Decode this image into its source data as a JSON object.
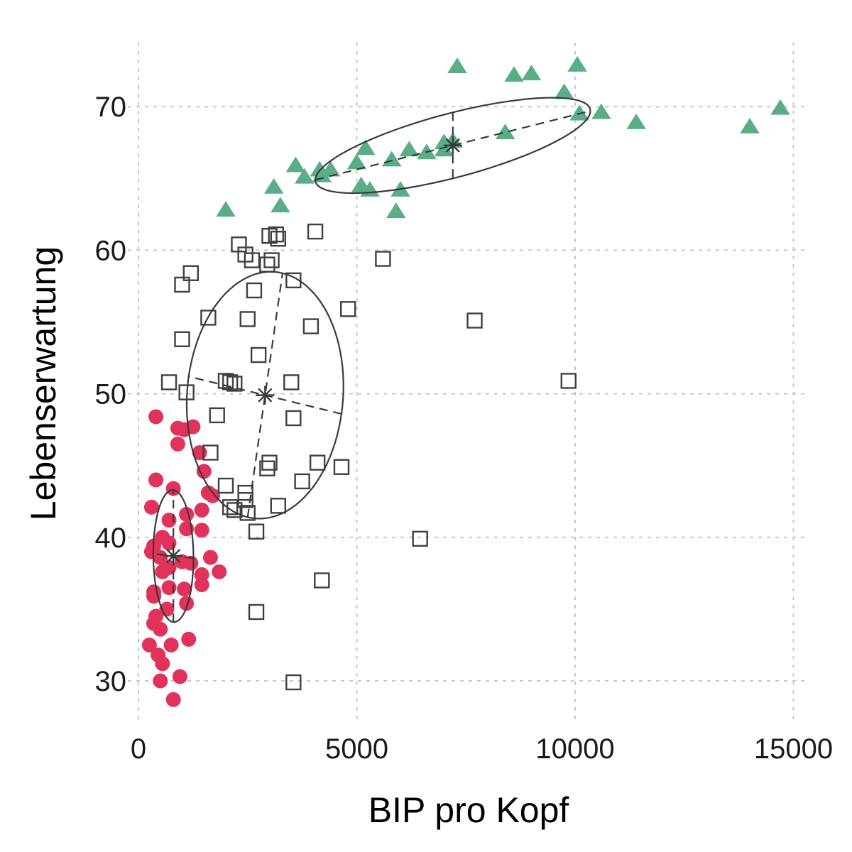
{
  "chart_data": {
    "type": "scatter",
    "title": "",
    "xlabel": "BIP pro Kopf",
    "ylabel": "Lebenserwartung",
    "xlim": [
      0,
      15000
    ],
    "ylim": [
      27,
      75
    ],
    "xticks": [
      0,
      5000,
      10000,
      15000
    ],
    "yticks": [
      30,
      40,
      50,
      60,
      70
    ],
    "grid": true,
    "legend": "none",
    "series": [
      {
        "marker": "circle",
        "color": "#E0325A",
        "points": [
          [
            400,
            48.4
          ],
          [
            900,
            47.6
          ],
          [
            1050,
            47.5
          ],
          [
            1250,
            47.7
          ],
          [
            900,
            46.5
          ],
          [
            1400,
            45.9
          ],
          [
            1500,
            44.6
          ],
          [
            400,
            44.0
          ],
          [
            800,
            43.4
          ],
          [
            1600,
            43.1
          ],
          [
            1700,
            42.9
          ],
          [
            300,
            42.1
          ],
          [
            1450,
            41.9
          ],
          [
            1100,
            41.6
          ],
          [
            700,
            41.2
          ],
          [
            1100,
            40.6
          ],
          [
            1450,
            40.5
          ],
          [
            550,
            40.0
          ],
          [
            700,
            39.6
          ],
          [
            350,
            39.4
          ],
          [
            500,
            38.6
          ],
          [
            300,
            39.0
          ],
          [
            1000,
            38.3
          ],
          [
            1200,
            38.2
          ],
          [
            1650,
            38.6
          ],
          [
            700,
            37.9
          ],
          [
            550,
            37.6
          ],
          [
            1450,
            37.4
          ],
          [
            1850,
            37.6
          ],
          [
            1450,
            36.7
          ],
          [
            1050,
            36.4
          ],
          [
            700,
            36.5
          ],
          [
            350,
            36.2
          ],
          [
            350,
            35.9
          ],
          [
            1100,
            35.4
          ],
          [
            650,
            35.0
          ],
          [
            400,
            34.5
          ],
          [
            350,
            34.0
          ],
          [
            500,
            33.6
          ],
          [
            1150,
            32.9
          ],
          [
            750,
            32.5
          ],
          [
            250,
            32.5
          ],
          [
            450,
            31.8
          ],
          [
            550,
            31.2
          ],
          [
            950,
            30.3
          ],
          [
            500,
            30.0
          ],
          [
            800,
            28.7
          ]
        ]
      },
      {
        "marker": "square",
        "color": "#404040",
        "points": [
          [
            3150,
            61.1
          ],
          [
            4050,
            61.3
          ],
          [
            3000,
            61.0
          ],
          [
            3200,
            60.8
          ],
          [
            2300,
            60.4
          ],
          [
            2450,
            59.7
          ],
          [
            2600,
            59.3
          ],
          [
            3050,
            59.3
          ],
          [
            2950,
            59.0
          ],
          [
            5600,
            59.4
          ],
          [
            1200,
            58.4
          ],
          [
            1000,
            57.6
          ],
          [
            3550,
            57.9
          ],
          [
            2650,
            57.2
          ],
          [
            4800,
            55.9
          ],
          [
            1600,
            55.3
          ],
          [
            2500,
            55.2
          ],
          [
            7700,
            55.1
          ],
          [
            3950,
            54.7
          ],
          [
            1000,
            53.8
          ],
          [
            2750,
            52.7
          ],
          [
            2000,
            50.9
          ],
          [
            2100,
            50.8
          ],
          [
            2200,
            50.7
          ],
          [
            700,
            50.8
          ],
          [
            3500,
            50.8
          ],
          [
            9850,
            50.9
          ],
          [
            1100,
            50.1
          ],
          [
            1800,
            48.5
          ],
          [
            3550,
            48.3
          ],
          [
            1650,
            45.9
          ],
          [
            3000,
            45.2
          ],
          [
            4100,
            45.2
          ],
          [
            4650,
            44.9
          ],
          [
            2950,
            44.8
          ],
          [
            3750,
            43.9
          ],
          [
            2000,
            43.6
          ],
          [
            2450,
            43.1
          ],
          [
            2450,
            42.6
          ],
          [
            3200,
            42.2
          ],
          [
            2100,
            42.1
          ],
          [
            2200,
            41.9
          ],
          [
            2500,
            41.7
          ],
          [
            2700,
            40.4
          ],
          [
            6450,
            39.9
          ],
          [
            4200,
            37.0
          ],
          [
            2700,
            34.8
          ],
          [
            3550,
            29.9
          ]
        ]
      },
      {
        "marker": "triangle",
        "color": "#5AAD87",
        "points": [
          [
            7300,
            72.8
          ],
          [
            10050,
            72.9
          ],
          [
            8600,
            72.2
          ],
          [
            9000,
            72.3
          ],
          [
            9750,
            71.0
          ],
          [
            14700,
            69.9
          ],
          [
            10600,
            69.6
          ],
          [
            10100,
            69.5
          ],
          [
            11400,
            68.9
          ],
          [
            14000,
            68.6
          ],
          [
            8400,
            68.2
          ],
          [
            7000,
            67.5
          ],
          [
            7200,
            67.6
          ],
          [
            5200,
            67.1
          ],
          [
            6200,
            67.0
          ],
          [
            6600,
            66.8
          ],
          [
            5800,
            66.3
          ],
          [
            7000,
            67.0
          ],
          [
            5000,
            66.1
          ],
          [
            3600,
            65.9
          ],
          [
            4150,
            65.6
          ],
          [
            4400,
            65.6
          ],
          [
            3800,
            65.1
          ],
          [
            4200,
            65.2
          ],
          [
            5300,
            64.2
          ],
          [
            6000,
            64.2
          ],
          [
            5100,
            64.5
          ],
          [
            3100,
            64.4
          ],
          [
            3250,
            63.1
          ],
          [
            2000,
            62.8
          ],
          [
            5900,
            62.7
          ]
        ]
      }
    ],
    "overlays": [
      {
        "center": [
          800,
          38.7
        ],
        "semi_major": [
          0,
          4.6
        ],
        "semi_minor": [
          -460,
          0.15
        ]
      },
      {
        "center": [
          2900,
          49.9
        ],
        "semi_major": [
          400,
          8.5
        ],
        "semi_minor": [
          -1750,
          1.3
        ]
      },
      {
        "center": [
          7200,
          67.3
        ],
        "semi_major": [
          3150,
          2.4
        ],
        "semi_minor": [
          0,
          -2.3
        ]
      }
    ]
  }
}
